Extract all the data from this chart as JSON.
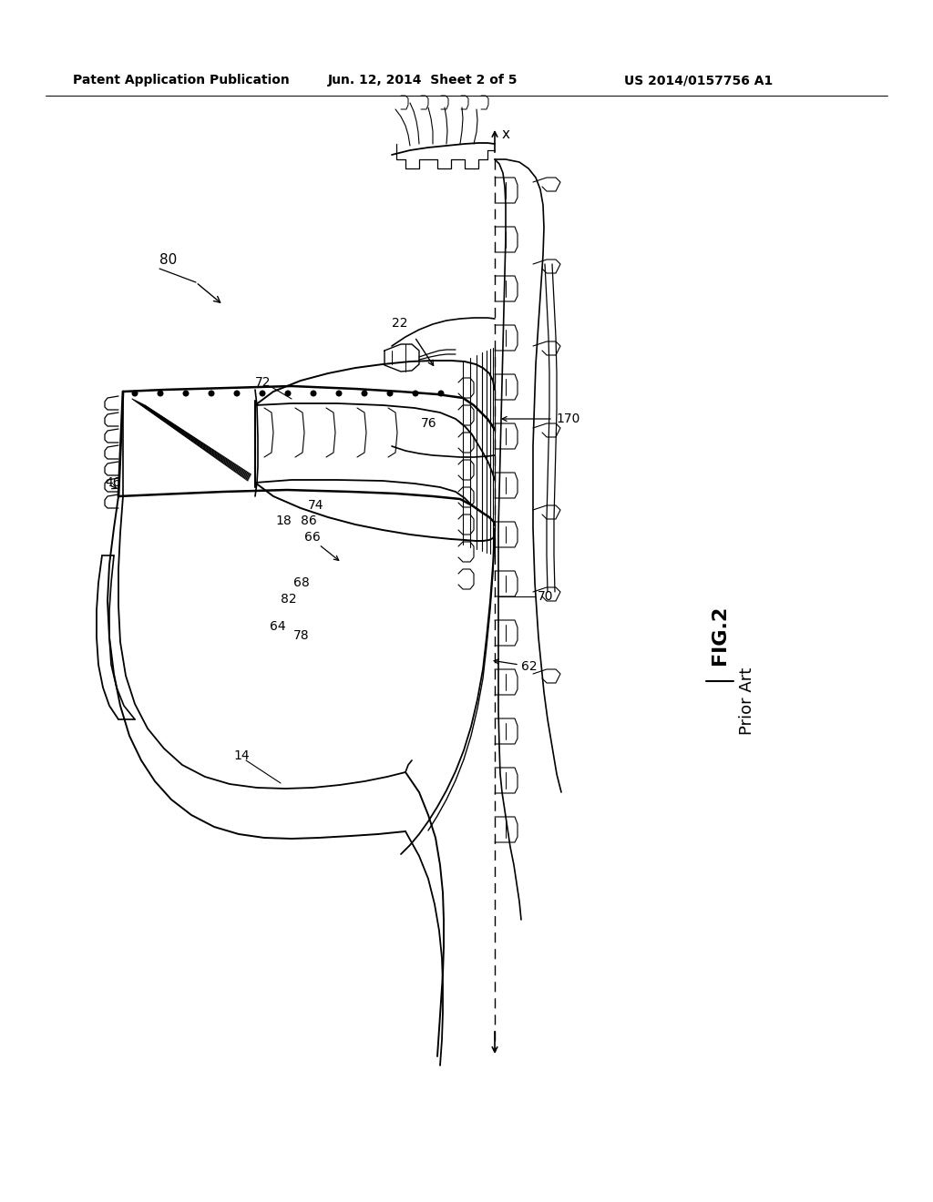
{
  "background_color": "#ffffff",
  "header_left": "Patent Application Publication",
  "header_mid": "Jun. 12, 2014  Sheet 2 of 5",
  "header_right": "US 2014/0157756 A1",
  "fig_label": "FIG.2",
  "fig_sublabel": "Prior Art",
  "label_fontsize": 10,
  "header_fontsize": 10,
  "page_width": 10.24,
  "page_height": 13.2,
  "dpi": 100
}
